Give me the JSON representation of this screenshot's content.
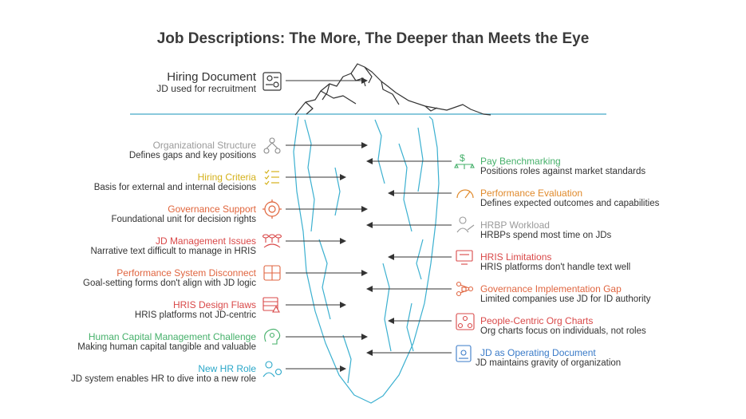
{
  "title": "Job Descriptions: The More, The Deeper than Meets the Eye",
  "top": {
    "title": "Hiring Document",
    "desc": "JD used for recruitment",
    "icon": "document-search-icon"
  },
  "left_items": [
    {
      "title": "Organizational Structure",
      "desc": "Defines gaps and key positions",
      "color": "#9a9a9a",
      "icon": "org-network-icon"
    },
    {
      "title": "Hiring Criteria",
      "desc": "Basis for external and internal decisions",
      "color": "#d4b11a",
      "icon": "checklist-icon"
    },
    {
      "title": "Governance Support",
      "desc": "Foundational unit for decision rights",
      "color": "#e0653c",
      "icon": "gear-shield-icon"
    },
    {
      "title": "JD Management Issues",
      "desc": "Narrative text difficult to manage in HRIS",
      "color": "#d94848",
      "icon": "database-servers-icon"
    },
    {
      "title": "Performance System Disconnect",
      "desc": "Goal-setting forms don't align with JD logic",
      "color": "#e06540",
      "icon": "puzzle-icon"
    },
    {
      "title": "HRIS Design Flaws",
      "desc": "HRIS platforms not JD-centric",
      "color": "#d94848",
      "icon": "table-warning-icon"
    },
    {
      "title": "Human Capital Management Challenge",
      "desc": "Making human capital tangible and valuable",
      "color": "#45b06a",
      "icon": "brain-gear-icon"
    },
    {
      "title": "New HR Role",
      "desc": "JD system enables HR to dive into a new role",
      "color": "#2aa7c9",
      "icon": "person-gear-icon"
    }
  ],
  "right_items": [
    {
      "title": "Pay Benchmarking",
      "desc": "Positions roles against market standards",
      "color": "#45b06a",
      "icon": "money-scale-icon"
    },
    {
      "title": "Performance Evaluation",
      "desc": "Defines expected outcomes and capabilities",
      "color": "#e08a2c",
      "icon": "speedometer-icon"
    },
    {
      "title": "HRBP Workload",
      "desc": "HRBPs spend most time on JDs",
      "color": "#9a9a9a",
      "icon": "person-writing-icon"
    },
    {
      "title": "HRIS Limitations",
      "desc": "HRIS platforms don't handle text well",
      "color": "#d94848",
      "icon": "monitor-warning-icon"
    },
    {
      "title": "Governance Implementation Gap",
      "desc": "Limited companies use JD for ID authority",
      "color": "#e06540",
      "icon": "network-lock-icon"
    },
    {
      "title": "People-Centric Org Charts",
      "desc": "Org charts focus on individuals, not roles",
      "color": "#d94848",
      "icon": "org-chart-icon"
    },
    {
      "title": "JD as Operating Document",
      "desc": "JD maintains gravity of organization",
      "color": "#3a7bc8",
      "icon": "document-gear-icon"
    }
  ],
  "colors": {
    "water": "#45a9c8",
    "ice": "#3bb0d0",
    "line": "#333333"
  }
}
